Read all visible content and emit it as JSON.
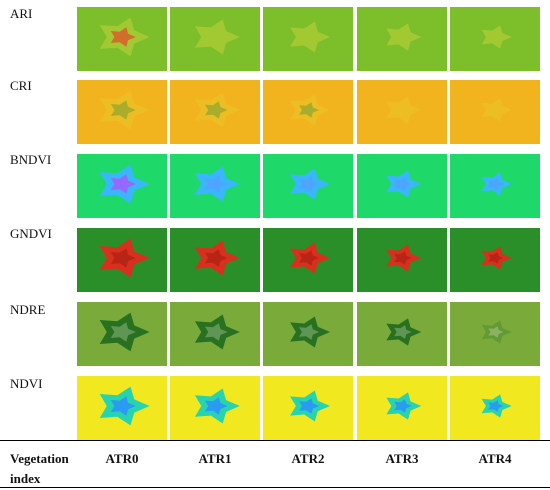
{
  "rows": [
    {
      "label": "ARI"
    },
    {
      "label": "CRI"
    },
    {
      "label": "BNDVI"
    },
    {
      "label": "GNDVI"
    },
    {
      "label": "NDRE"
    },
    {
      "label": "NDVI"
    }
  ],
  "columns": [
    "ATR0",
    "ATR1",
    "ATR2",
    "ATR3",
    "ATR4"
  ],
  "corner_label": "Vegetation index",
  "colors": {
    "ari_bg": "#7dbf2a",
    "ari_fg": "#c8d43a",
    "ari_hot": "#e0562a",
    "cri_bg": "#f2b41e",
    "cri_fg": "#e9c428",
    "cri_hot": "#2f8f3a",
    "bndvi_bg": "#1fd86a",
    "bndvi_mid": "#3ab6ff",
    "bndvi_hot": "#a060ff",
    "gndvi_bg": "#2a8f28",
    "gndvi_hot": "#d8301e",
    "ndre_bg": "#7aaa3a",
    "ndre_dark": "#1e6a1e",
    "ndre_light": "#e6ecd0",
    "ndvi_bg": "#f2e820",
    "ndvi_mid": "#27d4b0",
    "ndvi_hot": "#2a9af2"
  }
}
